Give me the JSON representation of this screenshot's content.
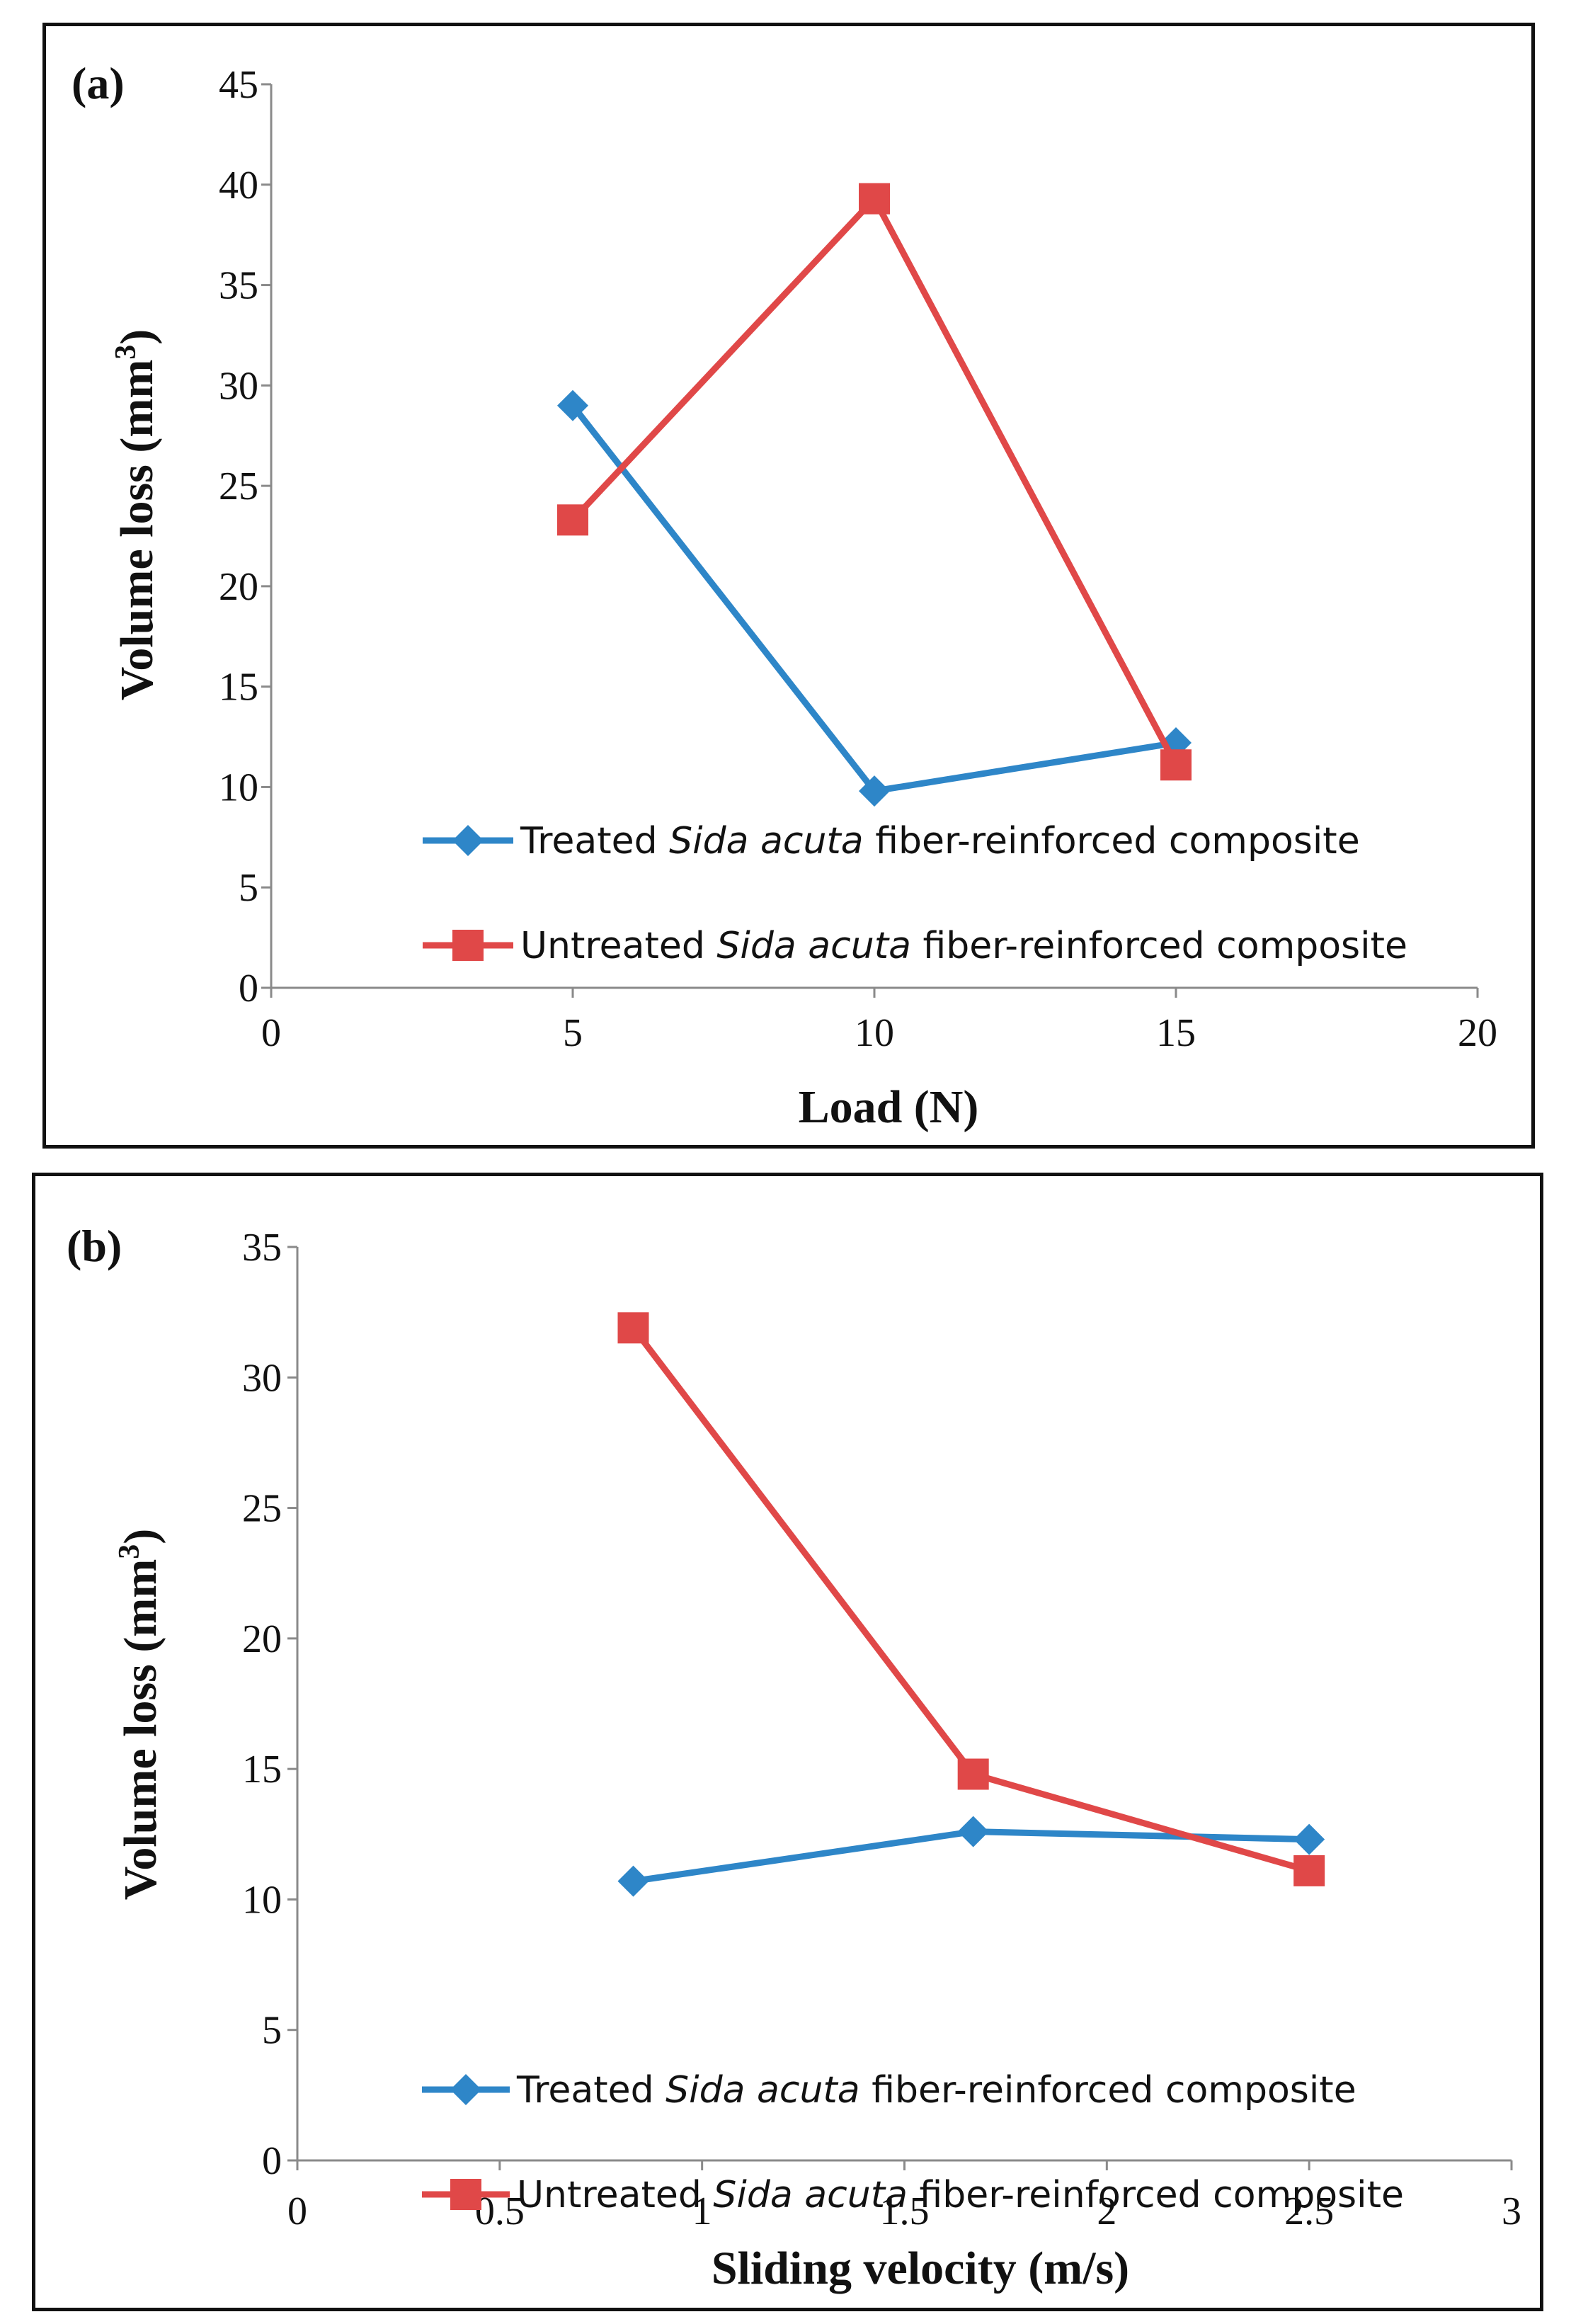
{
  "chart_data": [
    {
      "panel_label": "(a)",
      "type": "line",
      "xlabel": "Load (N)",
      "ylabel_main": "Volume loss (mm",
      "ylabel_sup": "3",
      "ylabel_close": ")",
      "xlim": [
        0,
        20
      ],
      "ylim": [
        0,
        45
      ],
      "xticks": [
        0,
        5,
        10,
        15,
        20
      ],
      "xtick_labels": [
        "0",
        "5",
        "10",
        "15",
        "20"
      ],
      "yticks": [
        0,
        5,
        10,
        15,
        20,
        25,
        30,
        35,
        40,
        45
      ],
      "ytick_labels": [
        "0",
        "5",
        "10",
        "15",
        "20",
        "25",
        "30",
        "35",
        "40",
        "45"
      ],
      "legend_position": "bottom-right inside plot",
      "series": [
        {
          "name": "Treated Sida acuta fiber-reinforced composite",
          "legend_pre": "Treated ",
          "legend_italic": "Sida acuta",
          "legend_post": " fiber-reinforced  composite",
          "marker": "diamond",
          "color": "#2e86c8",
          "x": [
            5,
            10,
            15
          ],
          "y": [
            29.0,
            9.8,
            12.2
          ]
        },
        {
          "name": "Untreated Sida acuta fiber-reinforced composite",
          "legend_pre": "Untreated ",
          "legend_italic": "Sida acuta",
          "legend_post": " fiber-reinforced  composite",
          "marker": "square",
          "color": "#e04848",
          "x": [
            5,
            10,
            15
          ],
          "y": [
            23.3,
            39.3,
            11.1
          ]
        }
      ]
    },
    {
      "panel_label": "(b)",
      "type": "line",
      "xlabel": "Sliding velocity  (m/s)",
      "ylabel_main": "Volume loss  (mm",
      "ylabel_sup": "3",
      "ylabel_close": ")",
      "xlim": [
        0,
        3
      ],
      "ylim": [
        0,
        35
      ],
      "xticks": [
        0,
        0.5,
        1,
        1.5,
        2,
        2.5,
        3
      ],
      "xtick_labels": [
        "0",
        "0.5",
        "1",
        "1.5",
        "2",
        "2.5",
        "3"
      ],
      "yticks": [
        0,
        5,
        10,
        15,
        20,
        25,
        30,
        35
      ],
      "ytick_labels": [
        "0",
        "5",
        "10",
        "15",
        "20",
        "25",
        "30",
        "35"
      ],
      "legend_position": "bottom-right inside plot",
      "series": [
        {
          "name": "Treated Sida acuta fiber-reinforced composite",
          "legend_pre": "Treated ",
          "legend_italic": "Sida acuta",
          "legend_post": " fiber-reinforced  composite",
          "marker": "diamond",
          "color": "#2e86c8",
          "x": [
            0.83,
            1.67,
            2.5
          ],
          "y": [
            10.7,
            12.6,
            12.3
          ]
        },
        {
          "name": "Untreated Sida acuta fiber-reinforced composite",
          "legend_pre": "Untreated ",
          "legend_italic": "Sida acuta",
          "legend_post": " fiber-reinforced  composite",
          "marker": "square",
          "color": "#e04848",
          "x": [
            0.83,
            1.67,
            2.5
          ],
          "y": [
            31.9,
            14.8,
            11.1
          ]
        }
      ]
    }
  ]
}
